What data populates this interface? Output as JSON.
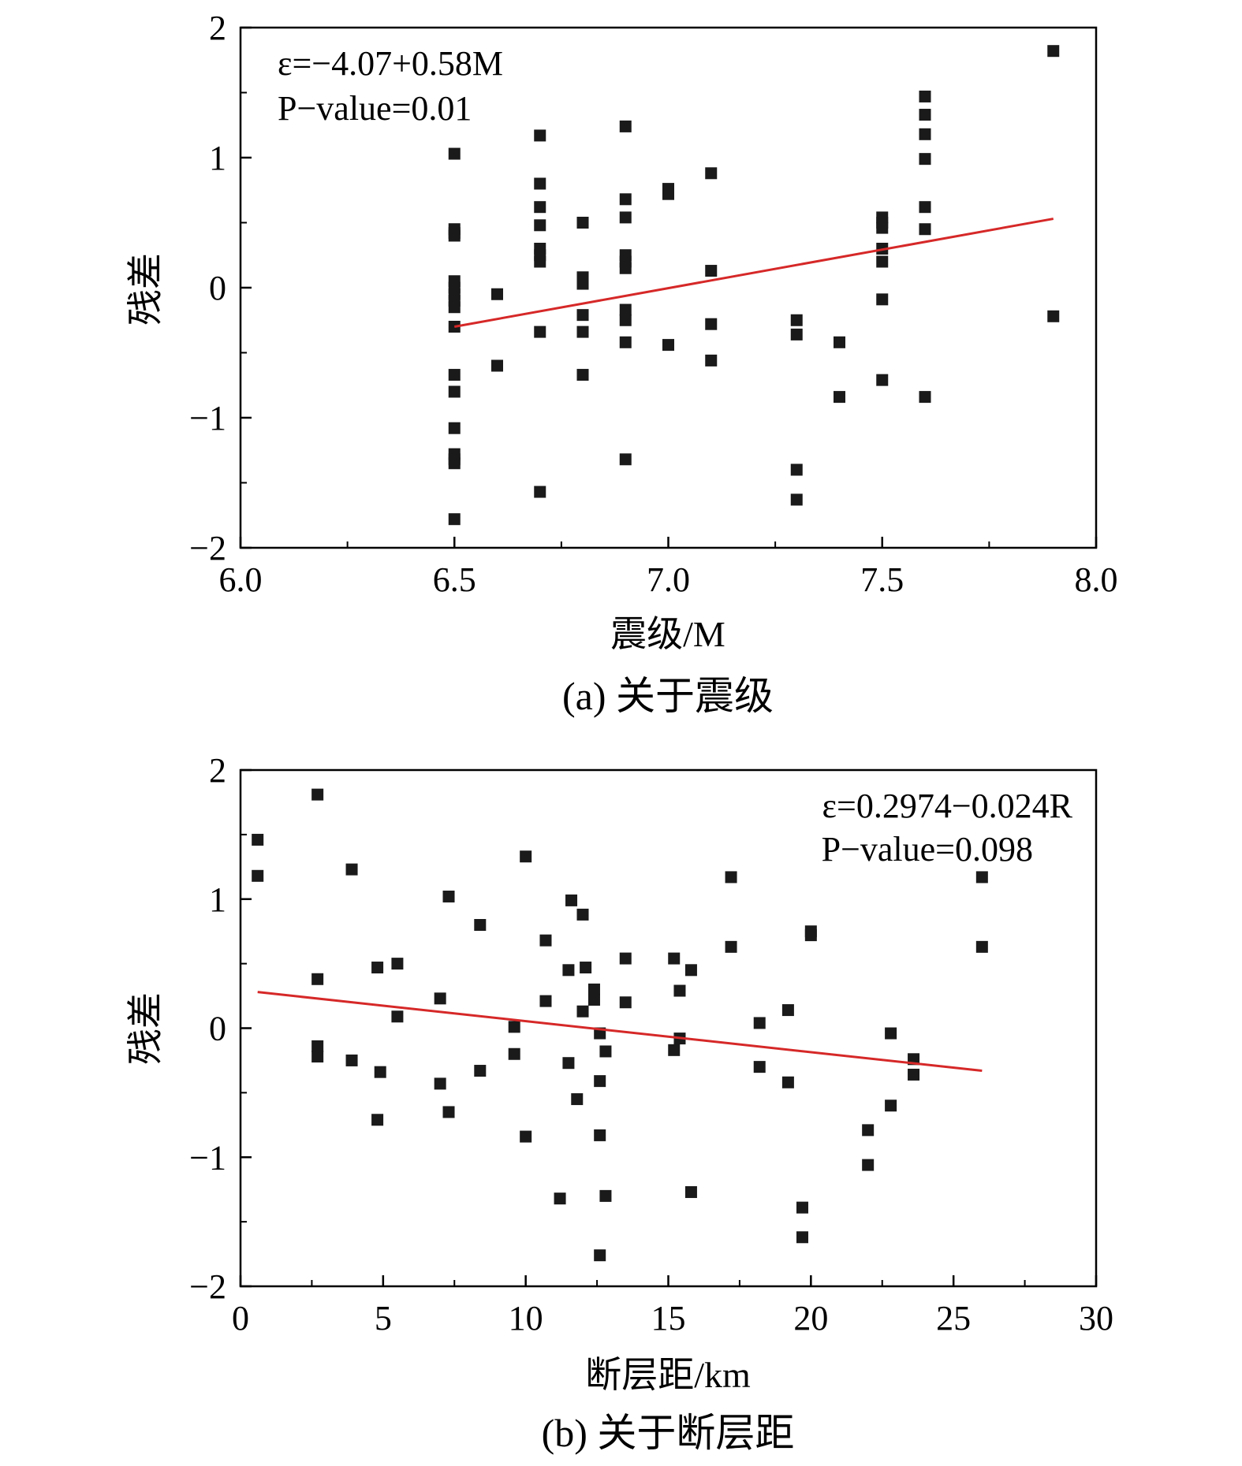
{
  "chart_data": [
    {
      "type": "scatter",
      "caption": "(a) 关于震级",
      "xlabel": "震级/M",
      "ylabel": "残差",
      "xlim": [
        6.0,
        8.0
      ],
      "ylim": [
        -2,
        2
      ],
      "xticks": [
        "6.0",
        "6.5",
        "7.0",
        "7.5",
        "8.0"
      ],
      "yticks": [
        "2",
        "1",
        "0",
        "−1",
        "−2"
      ],
      "annotation": [
        "ε=−4.07+0.58M",
        "P−value=0.01"
      ],
      "fit_line": {
        "x": [
          6.5,
          7.9
        ],
        "y": [
          -0.3,
          0.53
        ],
        "color": "#d62828"
      },
      "marker_color": "#1a1a1a",
      "points": {
        "x": [
          6.5,
          6.5,
          6.5,
          6.5,
          6.5,
          6.5,
          6.5,
          6.5,
          6.5,
          6.5,
          6.5,
          6.5,
          6.5,
          6.5,
          6.5,
          6.5,
          6.5,
          6.6,
          6.6,
          6.7,
          6.7,
          6.7,
          6.7,
          6.7,
          6.7,
          6.7,
          6.7,
          6.7,
          6.8,
          6.8,
          6.8,
          6.8,
          6.8,
          6.8,
          6.8,
          6.9,
          6.9,
          6.9,
          6.9,
          6.9,
          6.9,
          6.9,
          6.9,
          6.9,
          6.9,
          7.0,
          7.0,
          7.0,
          7.1,
          7.1,
          7.1,
          7.1,
          7.3,
          7.3,
          7.3,
          7.3,
          7.4,
          7.4,
          7.5,
          7.5,
          7.5,
          7.5,
          7.5,
          7.5,
          7.5,
          7.6,
          7.6,
          7.6,
          7.6,
          7.6,
          7.6,
          7.6,
          7.9,
          7.9
        ],
        "y": [
          1.03,
          0.45,
          0.4,
          0.05,
          0.0,
          -0.05,
          -0.1,
          -0.15,
          -0.3,
          -0.67,
          -0.8,
          -1.08,
          -1.28,
          -1.32,
          -1.35,
          -1.78,
          0.42,
          -0.05,
          -0.6,
          1.17,
          0.8,
          0.62,
          0.48,
          0.3,
          0.25,
          0.2,
          -0.34,
          -1.57,
          0.5,
          0.08,
          0.03,
          -0.21,
          -0.34,
          -0.67,
          0.05,
          1.24,
          0.68,
          0.54,
          0.25,
          0.2,
          0.15,
          -0.17,
          -0.25,
          -0.42,
          -1.32,
          0.76,
          0.72,
          -0.44,
          0.88,
          0.13,
          -0.28,
          -0.56,
          -0.25,
          -0.36,
          -1.4,
          -1.63,
          -0.42,
          -0.84,
          0.54,
          0.5,
          0.46,
          0.3,
          0.2,
          -0.09,
          -0.71,
          1.47,
          1.33,
          1.18,
          0.99,
          0.62,
          0.45,
          -0.84,
          1.82,
          -0.22
        ]
      }
    },
    {
      "type": "scatter",
      "caption": "(b) 关于断层距",
      "xlabel": "断层距/km",
      "ylabel": "残差",
      "xlim": [
        0,
        30
      ],
      "ylim": [
        -2,
        2
      ],
      "xticks": [
        "0",
        "5",
        "10",
        "15",
        "20",
        "25",
        "30"
      ],
      "yticks": [
        "2",
        "1",
        "0",
        "−1",
        "−2"
      ],
      "annotation": [
        "ε=0.2974−0.024R",
        "P−value=0.098"
      ],
      "fit_line": {
        "x": [
          0.6,
          26.0
        ],
        "y": [
          0.28,
          -0.33
        ],
        "color": "#d62828"
      },
      "marker_color": "#1a1a1a",
      "points": {
        "x": [
          0.6,
          0.6,
          2.7,
          2.7,
          2.7,
          2.7,
          3.9,
          3.9,
          4.8,
          4.9,
          4.8,
          5.5,
          5.5,
          7.0,
          7.0,
          7.3,
          7.3,
          8.4,
          8.4,
          9.6,
          9.6,
          10.0,
          10.0,
          10.7,
          10.7,
          11.2,
          11.5,
          11.6,
          11.5,
          11.8,
          12.0,
          12.1,
          12.0,
          12.4,
          12.4,
          12.6,
          12.6,
          12.6,
          12.6,
          12.8,
          12.8,
          13.5,
          13.5,
          15.2,
          15.2,
          15.4,
          15.4,
          15.8,
          15.8,
          17.2,
          17.2,
          18.2,
          18.2,
          19.2,
          19.2,
          19.7,
          19.7,
          20.0,
          20.0,
          22.0,
          22.0,
          22.8,
          22.8,
          23.6,
          23.6,
          26.0,
          26.0
        ],
        "y": [
          1.46,
          1.18,
          1.81,
          0.38,
          -0.14,
          -0.22,
          1.23,
          -0.25,
          0.47,
          -0.34,
          -0.71,
          0.5,
          0.09,
          0.23,
          -0.43,
          1.02,
          -0.65,
          0.8,
          -0.33,
          0.01,
          -0.2,
          1.33,
          -0.84,
          0.68,
          0.21,
          -1.32,
          0.45,
          0.99,
          -0.27,
          -0.55,
          0.88,
          0.47,
          0.13,
          0.3,
          0.22,
          -0.04,
          -0.41,
          -0.83,
          -1.76,
          -0.18,
          -1.3,
          0.54,
          0.2,
          0.54,
          -0.17,
          0.29,
          -0.08,
          0.45,
          -1.27,
          1.17,
          0.63,
          0.04,
          -0.3,
          0.14,
          -0.42,
          -1.39,
          -1.62,
          0.75,
          0.72,
          -0.79,
          -1.06,
          -0.04,
          -0.6,
          -0.24,
          -0.36,
          1.17,
          0.63
        ]
      }
    }
  ]
}
